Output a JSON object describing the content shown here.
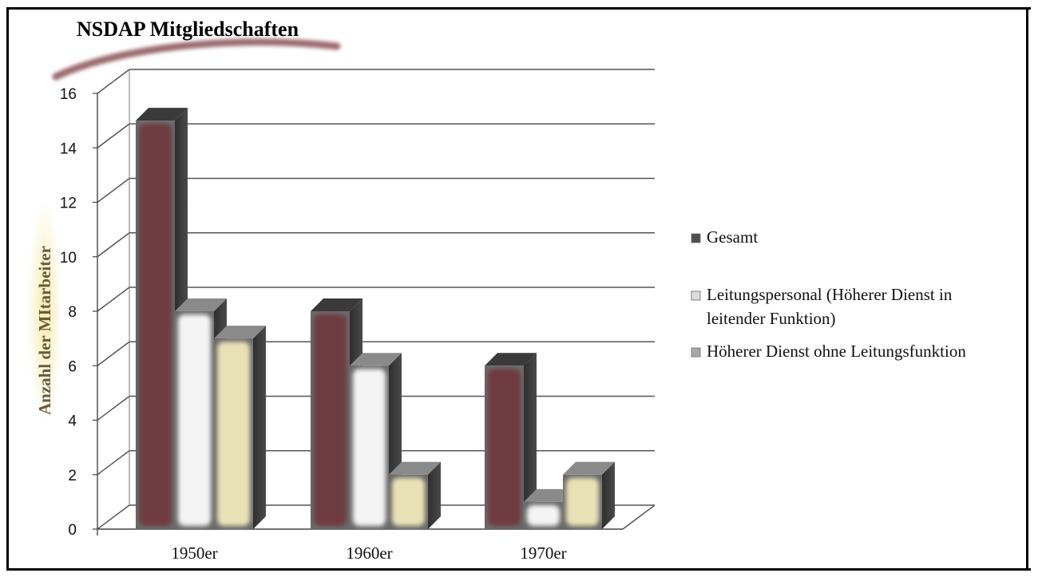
{
  "chart_data": {
    "type": "bar",
    "title": "NSDAP Mitgliedschaften",
    "xlabel": "",
    "ylabel": "Anzahl der MItarbeiter",
    "categories": [
      "1950er",
      "1960er",
      "1970er"
    ],
    "series": [
      {
        "name": "Gesamt",
        "values": [
          15,
          8,
          6
        ]
      },
      {
        "name": "Leitungspersonal (Höherer Dienst in leitender Funktion)",
        "legend_lines": [
          "Leitungspersonal (Höherer Dienst in",
          "leitender Funktion)"
        ],
        "values": [
          8,
          6,
          1
        ]
      },
      {
        "name": "Höherer Dienst ohne Leitungsfunktion",
        "legend_lines": [
          "Höherer Dienst ohne Leitungsfunktion"
        ],
        "values": [
          7,
          2,
          2
        ]
      }
    ],
    "ylim": [
      0,
      16
    ],
    "yticks": [
      "0",
      "2",
      "4",
      "6",
      "8",
      "10",
      "12",
      "14",
      "16"
    ],
    "grid": true,
    "style": "3d-column",
    "legend_position": "right",
    "colors": {
      "series_fill": [
        "#6e3a3f",
        "#f4f4f4",
        "#e9e1b6"
      ],
      "bar_frame": "#6a6a6a",
      "bar_side": "#3a3a3a",
      "gridline": "#555555",
      "legend_swatch": [
        "#505050",
        "#dddddd",
        "#a8a8a8"
      ]
    }
  }
}
